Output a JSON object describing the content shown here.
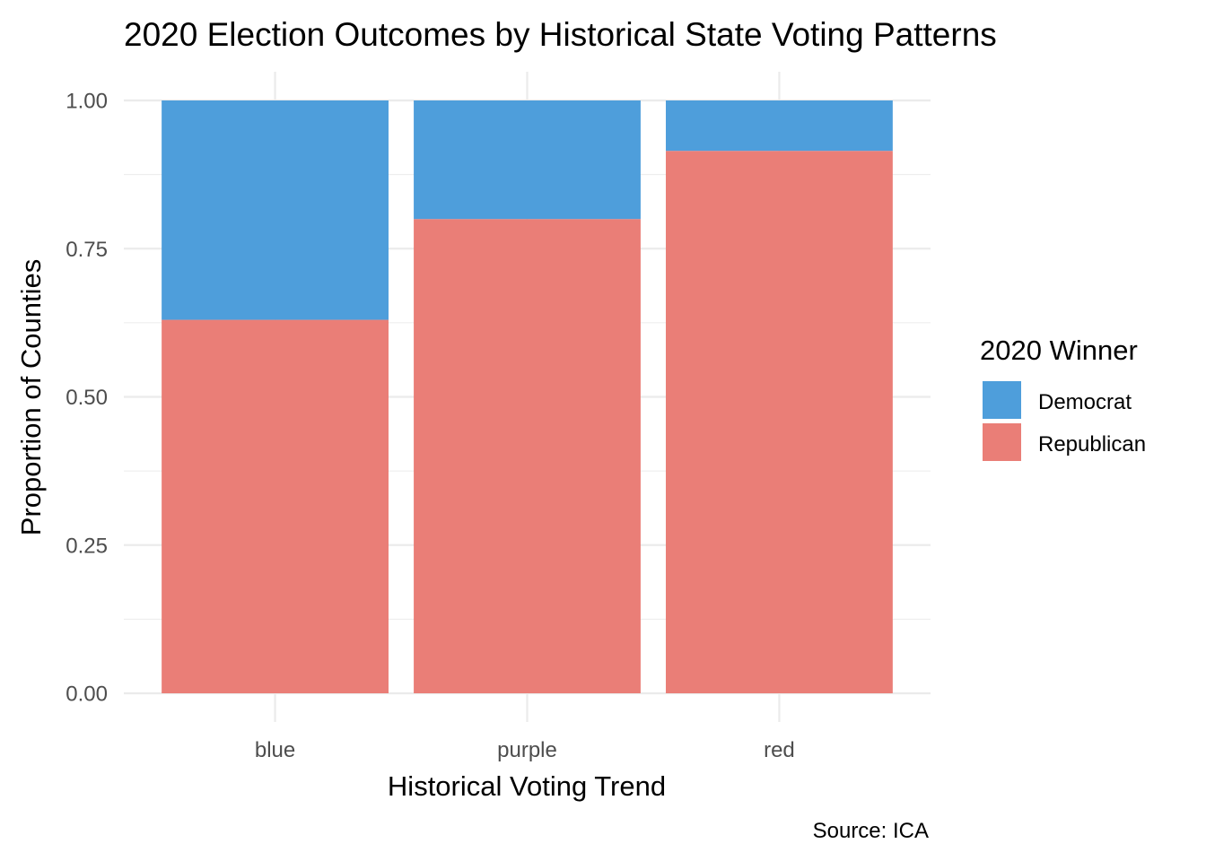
{
  "chart_data": {
    "type": "bar",
    "stacked": true,
    "position": "fill",
    "title": "2020 Election Outcomes by Historical State Voting Patterns",
    "xlabel": "Historical Voting Trend",
    "ylabel": "Proportion of Counties",
    "caption": "Source: ICA",
    "categories": [
      "blue",
      "purple",
      "red"
    ],
    "ylim": [
      0,
      1
    ],
    "y_ticks": [
      0,
      0.25,
      0.5,
      0.75,
      1
    ],
    "y_tick_labels": [
      "0.00",
      "0.25",
      "0.50",
      "0.75",
      "1.00"
    ],
    "grid": true,
    "legend": {
      "title": "2020 Winner",
      "placement": "right",
      "entries": [
        "Democrat",
        "Republican"
      ]
    },
    "series": [
      {
        "name": "Republican",
        "color": "#ea7e77",
        "values": [
          0.63,
          0.8,
          0.915
        ]
      },
      {
        "name": "Democrat",
        "color": "#4e9edb",
        "values": [
          0.37,
          0.2,
          0.085
        ]
      }
    ]
  }
}
